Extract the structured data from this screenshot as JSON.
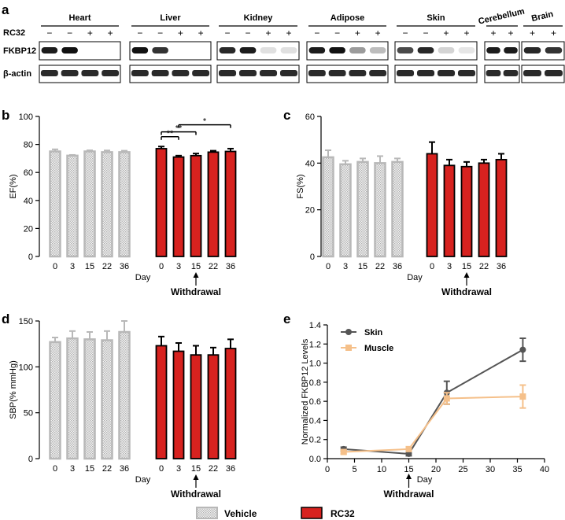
{
  "panel_letters": {
    "a": "a",
    "b": "b",
    "c": "c",
    "d": "d",
    "e": "e"
  },
  "blot": {
    "treatment_label": "RC32",
    "rows": [
      "FKBP12",
      "β-actin"
    ],
    "tissues": [
      {
        "name": "Heart",
        "signs": [
          "−",
          "−",
          "+",
          "+"
        ],
        "fkbp": [
          0.9,
          0.95,
          0,
          0
        ]
      },
      {
        "name": "Liver",
        "signs": [
          "−",
          "−",
          "+",
          "+"
        ],
        "fkbp": [
          0.95,
          0.8,
          0,
          0
        ]
      },
      {
        "name": "Kidney",
        "signs": [
          "−",
          "−",
          "+",
          "+"
        ],
        "fkbp": [
          0.85,
          0.9,
          0.05,
          0.05
        ]
      },
      {
        "name": "Adipose",
        "signs": [
          "−",
          "−",
          "+",
          "+"
        ],
        "fkbp": [
          0.9,
          0.95,
          0.35,
          0.2
        ]
      },
      {
        "name": "Skin",
        "signs": [
          "−",
          "−",
          "+",
          "+"
        ],
        "fkbp": [
          0.7,
          0.85,
          0.1,
          0.02
        ]
      },
      {
        "name": "Cerebellum",
        "signs": [
          "+",
          "+"
        ],
        "fkbp": [
          0.9,
          0.9
        ],
        "tilted": true
      },
      {
        "name": "Brain",
        "signs": [
          "+",
          "+"
        ],
        "fkbp": [
          0.85,
          0.8
        ],
        "tilted": true
      }
    ]
  },
  "chart_data": [
    {
      "id": "b",
      "type": "bar",
      "ylabel": "EF(%)",
      "xlabel": "Day",
      "ylim": [
        0,
        100
      ],
      "yticks": [
        0,
        20,
        40,
        60,
        80,
        100
      ],
      "categories": [
        "0",
        "3",
        "15",
        "22",
        "36"
      ],
      "series": [
        {
          "name": "Vehicle",
          "values": [
            75,
            72,
            75,
            74.5,
            74.5
          ],
          "errors": [
            1.5,
            0.5,
            0.8,
            1.2,
            1.0
          ]
        },
        {
          "name": "RC32",
          "values": [
            77,
            71,
            72,
            74.5,
            75
          ],
          "errors": [
            1.5,
            1.0,
            1.5,
            1.0,
            2.0
          ]
        }
      ],
      "significance": [
        {
          "from": 0,
          "to": 1,
          "label": "**"
        },
        {
          "from": 0,
          "to": 2,
          "label": "**"
        },
        {
          "from": 1,
          "to": 4,
          "label": "*"
        }
      ],
      "annotation": "Withdrawal",
      "annotation_category": "15"
    },
    {
      "id": "c",
      "type": "bar",
      "ylabel": "FS(%)",
      "xlabel": "Day",
      "ylim": [
        0,
        60
      ],
      "yticks": [
        0,
        20,
        40,
        60
      ],
      "categories": [
        "0",
        "3",
        "15",
        "22",
        "36"
      ],
      "series": [
        {
          "name": "Vehicle",
          "values": [
            42.5,
            39.5,
            40.5,
            40,
            40.5
          ],
          "errors": [
            3.0,
            1.5,
            1.5,
            3.0,
            1.5
          ]
        },
        {
          "name": "RC32",
          "values": [
            44,
            39,
            38.5,
            40,
            41.5
          ],
          "errors": [
            5.0,
            2.5,
            2.0,
            1.5,
            2.5
          ]
        }
      ],
      "annotation": "Withdrawal",
      "annotation_category": "15"
    },
    {
      "id": "d",
      "type": "bar",
      "ylabel": "SBP(% mmHg)",
      "xlabel": "Day",
      "ylim": [
        0,
        150
      ],
      "yticks": [
        0,
        50,
        100,
        150
      ],
      "categories": [
        "0",
        "3",
        "15",
        "22",
        "36"
      ],
      "series": [
        {
          "name": "Vehicle",
          "values": [
            127,
            131,
            130,
            129,
            138
          ],
          "errors": [
            5,
            8,
            8,
            10,
            12
          ]
        },
        {
          "name": "RC32",
          "values": [
            123,
            117,
            113,
            113,
            120
          ],
          "errors": [
            10,
            9,
            10,
            8,
            10
          ]
        }
      ],
      "annotation": "Withdrawal",
      "annotation_category": "15"
    },
    {
      "id": "e",
      "type": "line",
      "ylabel": "Normalized FKBP12 Levels",
      "xlabel": "Day",
      "xlim": [
        0,
        40
      ],
      "ylim": [
        0,
        1.4
      ],
      "xticks": [
        0,
        5,
        10,
        15,
        20,
        25,
        30,
        35,
        40
      ],
      "yticks": [
        0,
        0.2,
        0.4,
        0.6,
        0.8,
        1.0,
        1.2,
        1.4
      ],
      "series": [
        {
          "name": "Skin",
          "color": "#555555",
          "marker": "circle",
          "x": [
            3,
            15,
            22,
            36
          ],
          "y": [
            0.1,
            0.05,
            0.69,
            1.14
          ],
          "errors": [
            0.02,
            0.02,
            0.12,
            0.12
          ]
        },
        {
          "name": "Muscle",
          "color": "#f5c08a",
          "marker": "square",
          "x": [
            3,
            15,
            22,
            36
          ],
          "y": [
            0.07,
            0.1,
            0.63,
            0.65
          ],
          "errors": [
            0.02,
            0.02,
            0.06,
            0.12
          ]
        }
      ],
      "annotation": "Withdrawal",
      "annotation_x": 15
    }
  ],
  "legend": [
    {
      "name": "Vehicle"
    },
    {
      "name": "RC32"
    }
  ],
  "colors": {
    "vehicle": "#b8b8b8",
    "rc32": "#d7221f",
    "skin": "#555555",
    "muscle": "#f5c08a"
  }
}
